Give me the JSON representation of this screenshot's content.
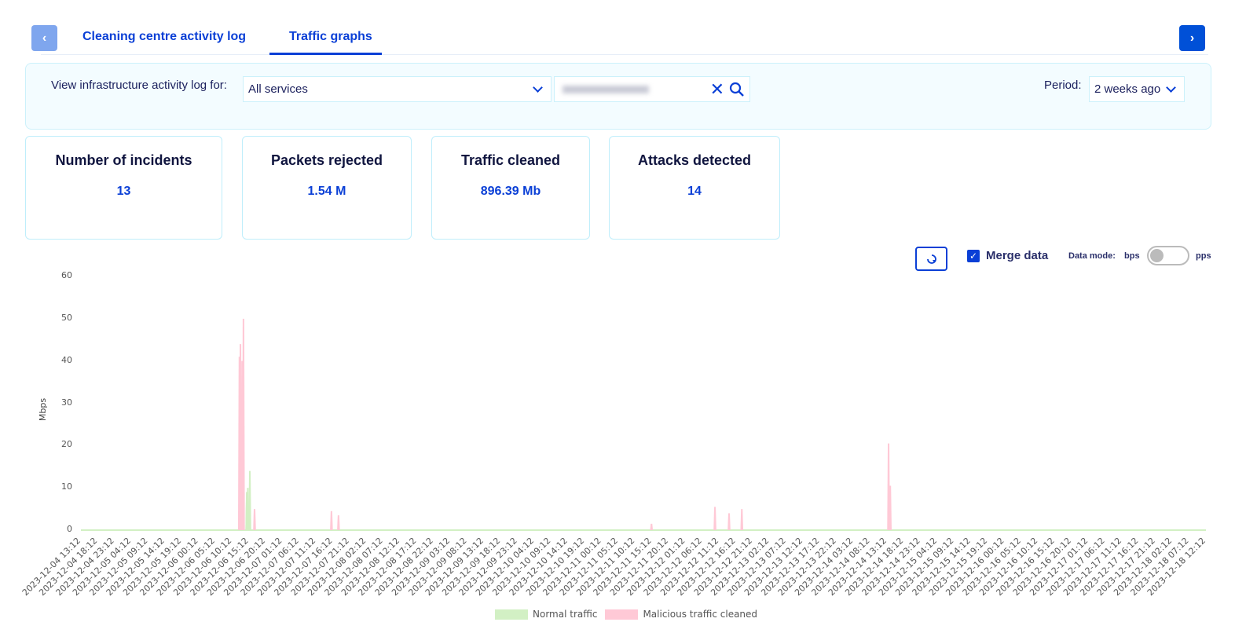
{
  "tabs": [
    {
      "label": "Cleaning centre activity log",
      "active": false
    },
    {
      "label": "Traffic graphs",
      "active": true
    }
  ],
  "icons": {
    "prev": "chevron-left-icon",
    "next": "chevron-right-icon",
    "clear": "close-icon",
    "search": "search-icon",
    "refresh": "refresh-icon"
  },
  "filter": {
    "label": "View infrastructure activity log for:",
    "service_value": "All services",
    "period_label": "Period:",
    "period_value": "2 weeks ago"
  },
  "stats": [
    {
      "title": "Number of incidents",
      "value": "13"
    },
    {
      "title": "Packets rejected",
      "value": "1.54 M"
    },
    {
      "title": "Traffic cleaned",
      "value": "896.39 Mb"
    },
    {
      "title": "Attacks detected",
      "value": "14"
    }
  ],
  "controls": {
    "merge_label": "Merge data",
    "merge_checked": true,
    "data_mode_label": "Data mode:",
    "mode_left": "bps",
    "mode_right": "pps",
    "mode_value": "bps"
  },
  "colors": {
    "accent": "#0a3fd6",
    "normal": "#d2f0c4",
    "malicious": "#ffc9d6"
  },
  "chart_data": {
    "type": "area",
    "ylabel": "Mbps",
    "ylim": [
      0,
      60
    ],
    "yticks": [
      0,
      10,
      20,
      30,
      40,
      50,
      60
    ],
    "legend": "bottom",
    "xticks": [
      "2023-12-04 13:12",
      "2023-12-04 18:12",
      "2023-12-04 23:12",
      "2023-12-05 04:12",
      "2023-12-05 09:12",
      "2023-12-05 14:12",
      "2023-12-05 19:12",
      "2023-12-06 00:12",
      "2023-12-06 05:12",
      "2023-12-06 10:12",
      "2023-12-06 15:12",
      "2023-12-06 20:12",
      "2023-12-07 01:12",
      "2023-12-07 06:12",
      "2023-12-07 11:12",
      "2023-12-07 16:12",
      "2023-12-07 21:12",
      "2023-12-08 02:12",
      "2023-12-08 07:12",
      "2023-12-08 12:12",
      "2023-12-08 17:12",
      "2023-12-08 22:12",
      "2023-12-09 03:12",
      "2023-12-09 08:12",
      "2023-12-09 13:12",
      "2023-12-09 18:12",
      "2023-12-09 23:12",
      "2023-12-10 04:12",
      "2023-12-10 09:12",
      "2023-12-10 14:12",
      "2023-12-10 19:12",
      "2023-12-11 00:12",
      "2023-12-11 05:12",
      "2023-12-11 10:12",
      "2023-12-11 15:12",
      "2023-12-11 20:12",
      "2023-12-12 01:12",
      "2023-12-12 06:12",
      "2023-12-12 11:12",
      "2023-12-12 16:12",
      "2023-12-12 21:12",
      "2023-12-13 02:12",
      "2023-12-13 07:12",
      "2023-12-13 12:12",
      "2023-12-13 17:12",
      "2023-12-13 22:12",
      "2023-12-14 03:12",
      "2023-12-14 08:12",
      "2023-12-14 13:12",
      "2023-12-14 18:12",
      "2023-12-14 23:12",
      "2023-12-15 04:12",
      "2023-12-15 09:12",
      "2023-12-15 14:12",
      "2023-12-15 19:12",
      "2023-12-16 00:12",
      "2023-12-16 05:12",
      "2023-12-16 10:12",
      "2023-12-16 15:12",
      "2023-12-16 20:12",
      "2023-12-17 01:12",
      "2023-12-17 06:12",
      "2023-12-17 11:12",
      "2023-12-17 16:12",
      "2023-12-17 21:12",
      "2023-12-18 02:12",
      "2023-12-18 07:12",
      "2023-12-18 12:12"
    ],
    "series": [
      {
        "name": "Normal traffic",
        "color": "#d2f0c4",
        "points": [
          [
            "2023-12-06 14:36",
            9
          ],
          [
            "2023-12-06 14:54",
            10
          ],
          [
            "2023-12-06 15:30",
            14
          ]
        ]
      },
      {
        "name": "Malicious traffic cleaned",
        "color": "#ffc9d6",
        "points": [
          [
            "2023-12-06 12:24",
            41
          ],
          [
            "2023-12-06 12:42",
            44
          ],
          [
            "2023-12-06 13:12",
            40
          ],
          [
            "2023-12-06 13:36",
            50
          ],
          [
            "2023-12-06 14:36",
            9
          ],
          [
            "2023-12-06 16:54",
            5
          ],
          [
            "2023-12-07 15:48",
            4.5
          ],
          [
            "2023-12-07 17:54",
            3.5
          ],
          [
            "2023-12-11 15:06",
            1.5
          ],
          [
            "2023-12-12 10:00",
            5.5
          ],
          [
            "2023-12-12 14:12",
            4
          ],
          [
            "2023-12-12 18:00",
            5
          ],
          [
            "2023-12-14 13:42",
            20.5
          ],
          [
            "2023-12-14 14:12",
            10.5
          ]
        ]
      }
    ]
  }
}
